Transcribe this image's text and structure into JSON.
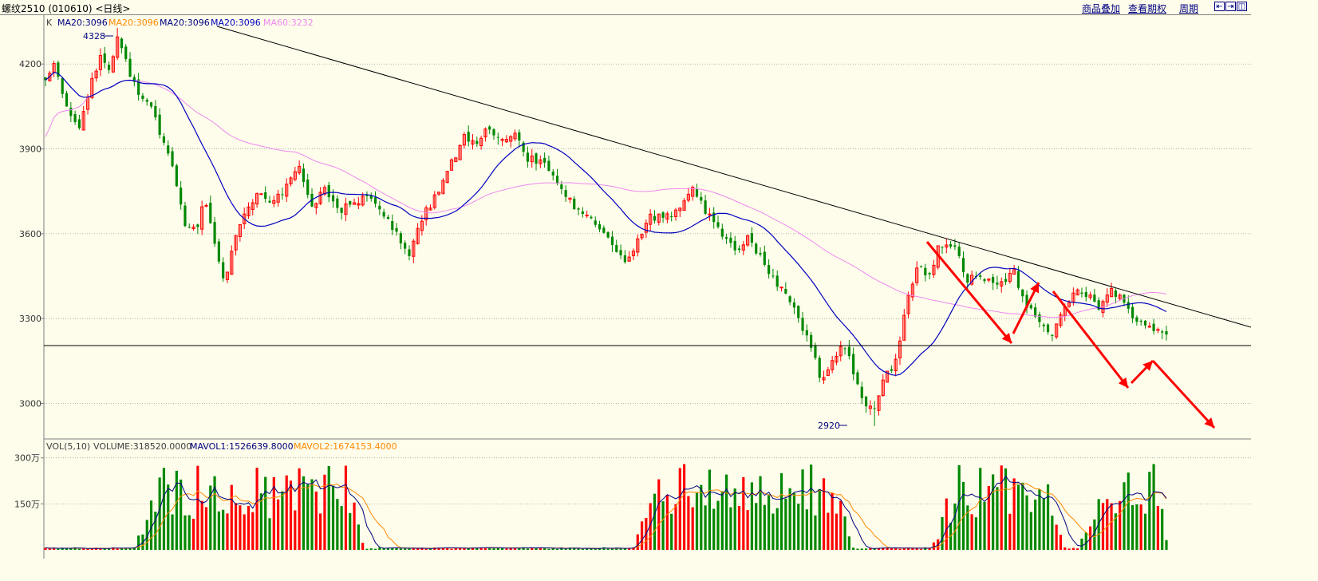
{
  "window": {
    "title": "螺纹2510 (010610) <日线>",
    "links": [
      "商品叠加",
      "查看期权",
      "周期"
    ],
    "icons": [
      "zoom-in-icon",
      "zoom-out-icon",
      "panel-layout-icon"
    ]
  },
  "colors": {
    "background": "#fefdeb",
    "up": "#ff0000",
    "down": "#008800",
    "ma20": "#0000c0",
    "ma60": "#ee88ee",
    "grid": "#a0a0a0",
    "mavol2": "#ff8800",
    "arrow": "#ff0000"
  },
  "legend_k": {
    "prefix": "K",
    "items": [
      {
        "text": "MA20:3096",
        "color": "#000080"
      },
      {
        "text": "MA20:3096",
        "color": "#ff8800"
      },
      {
        "text": "MA20:3096",
        "color": "#000080"
      },
      {
        "text": "MA20:3096",
        "color": "#0000c0"
      },
      {
        "text": "MA60:3232",
        "color": "#ee88ee"
      }
    ]
  },
  "legend_vol": {
    "prefix": "VOL(5,10)",
    "items": [
      {
        "text": "VOLUME:318520.0000",
        "color": "#404040"
      },
      {
        "text": "MAVOL1:1526639.8000",
        "color": "#000080"
      },
      {
        "text": "MAVOL2:1674153.4000",
        "color": "#ff8800"
      }
    ]
  },
  "annotations": {
    "high": "4328",
    "low": "2920"
  },
  "chart_data": {
    "type": "candlestick",
    "price_axis": {
      "ticks": [
        4200,
        3900,
        3600,
        3300,
        3000
      ],
      "range": [
        2880,
        4370
      ]
    },
    "volume_axis": {
      "ticks": [
        {
          "label": "300万",
          "value": 3000000
        },
        {
          "label": "150万",
          "value": 1500000
        }
      ],
      "range": [
        0,
        3200000
      ]
    },
    "num_bars": 266,
    "high_value": 4328,
    "low_value": 2920,
    "last_ma20": 3096,
    "last_ma60": 3232,
    "anchors": [
      [
        0,
        4150
      ],
      [
        3,
        4210
      ],
      [
        8,
        4020
      ],
      [
        12,
        3960
      ],
      [
        16,
        4130
      ],
      [
        20,
        4230
      ],
      [
        23,
        4180
      ],
      [
        26,
        4290
      ],
      [
        29,
        4200
      ],
      [
        33,
        4100
      ],
      [
        38,
        4050
      ],
      [
        42,
        3920
      ],
      [
        46,
        3820
      ],
      [
        50,
        3640
      ],
      [
        54,
        3600
      ],
      [
        57,
        3720
      ],
      [
        62,
        3500
      ],
      [
        64,
        3420
      ],
      [
        67,
        3550
      ],
      [
        71,
        3660
      ],
      [
        76,
        3740
      ],
      [
        80,
        3700
      ],
      [
        86,
        3760
      ],
      [
        91,
        3840
      ],
      [
        96,
        3690
      ],
      [
        100,
        3760
      ],
      [
        105,
        3680
      ],
      [
        110,
        3700
      ],
      [
        115,
        3740
      ],
      [
        120,
        3690
      ],
      [
        125,
        3610
      ],
      [
        130,
        3520
      ],
      [
        134,
        3640
      ],
      [
        140,
        3730
      ],
      [
        145,
        3840
      ],
      [
        150,
        3940
      ],
      [
        154,
        3910
      ],
      [
        159,
        3980
      ],
      [
        164,
        3920
      ],
      [
        168,
        3960
      ],
      [
        172,
        3870
      ],
      [
        178,
        3850
      ],
      [
        184,
        3780
      ],
      [
        190,
        3680
      ],
      [
        196,
        3660
      ],
      [
        200,
        3610
      ],
      [
        205,
        3540
      ],
      [
        208,
        3490
      ],
      [
        212,
        3560
      ],
      [
        217,
        3660
      ],
      [
        222,
        3660
      ],
      [
        228,
        3690
      ],
      [
        232,
        3770
      ],
      [
        236,
        3690
      ],
      [
        240,
        3640
      ],
      [
        244,
        3580
      ],
      [
        248,
        3540
      ],
      [
        252,
        3600
      ],
      [
        256,
        3520
      ],
      [
        260,
        3460
      ],
      [
        265,
        3390
      ],
      [
        270,
        3300
      ],
      [
        275,
        3200
      ],
      [
        278,
        3080
      ],
      [
        282,
        3150
      ],
      [
        286,
        3220
      ],
      [
        290,
        3110
      ],
      [
        294,
        3000
      ],
      [
        297,
        2960
      ],
      [
        301,
        3100
      ],
      [
        305,
        3150
      ],
      [
        309,
        3360
      ],
      [
        313,
        3500
      ],
      [
        317,
        3440
      ],
      [
        320,
        3560
      ],
      [
        326,
        3560
      ],
      [
        330,
        3440
      ],
      [
        336,
        3450
      ],
      [
        342,
        3410
      ],
      [
        347,
        3470
      ],
      [
        351,
        3350
      ],
      [
        356,
        3300
      ],
      [
        361,
        3230
      ],
      [
        366,
        3350
      ],
      [
        370,
        3410
      ],
      [
        374,
        3380
      ],
      [
        378,
        3340
      ],
      [
        382,
        3400
      ],
      [
        386,
        3370
      ],
      [
        390,
        3300
      ],
      [
        394,
        3280
      ],
      [
        398,
        3260
      ],
      [
        402,
        3240
      ]
    ],
    "arrows": [
      {
        "from": [
          1162,
          303
        ],
        "to": [
          1268,
          430
        ]
      },
      {
        "from": [
          1270,
          418
        ],
        "to": [
          1302,
          354
        ]
      },
      {
        "from": [
          1320,
          365
        ],
        "to": [
          1414,
          486
        ]
      },
      {
        "from": [
          1418,
          480
        ],
        "to": [
          1445,
          452
        ]
      },
      {
        "from": [
          1445,
          452
        ],
        "to": [
          1522,
          536
        ]
      }
    ]
  }
}
